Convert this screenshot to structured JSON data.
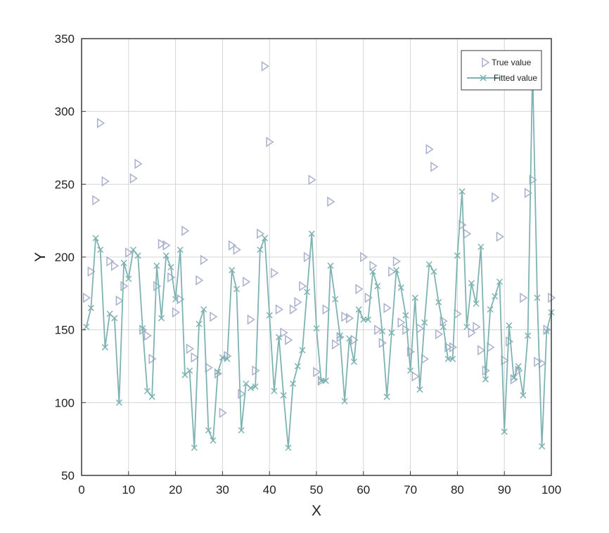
{
  "chart_data": {
    "type": "line",
    "xlabel": "X",
    "ylabel": "Y",
    "xlim": [
      0,
      100
    ],
    "ylim": [
      50,
      350
    ],
    "xticks": [
      0,
      10,
      20,
      30,
      40,
      50,
      60,
      70,
      80,
      90,
      100
    ],
    "yticks": [
      50,
      100,
      150,
      200,
      250,
      300,
      350
    ],
    "grid": true,
    "legend": "top-right",
    "colors": {
      "true_value": "#a9b0cc",
      "fitted_value": "#7fb3b3"
    },
    "series": [
      {
        "name": "True value",
        "style": "triangle-right-markers",
        "x": [
          1,
          2,
          3,
          4,
          5,
          6,
          7,
          8,
          9,
          10,
          11,
          12,
          13,
          14,
          15,
          16,
          17,
          18,
          19,
          20,
          21,
          22,
          23,
          24,
          25,
          26,
          27,
          28,
          29,
          30,
          31,
          32,
          33,
          34,
          35,
          36,
          37,
          38,
          39,
          40,
          41,
          42,
          43,
          44,
          45,
          46,
          47,
          48,
          49,
          50,
          51,
          52,
          53,
          54,
          55,
          56,
          57,
          58,
          59,
          60,
          61,
          62,
          63,
          64,
          65,
          66,
          67,
          68,
          69,
          70,
          71,
          72,
          73,
          74,
          75,
          76,
          77,
          78,
          79,
          80,
          81,
          82,
          83,
          84,
          85,
          86,
          87,
          88,
          89,
          90,
          91,
          92,
          93,
          94,
          95,
          96,
          97,
          98,
          99,
          100
        ],
        "values": [
          172,
          190,
          239,
          292,
          252,
          197,
          194,
          170,
          180,
          203,
          254,
          264,
          150,
          146,
          130,
          180,
          209,
          208,
          186,
          162,
          171,
          218,
          137,
          131,
          184,
          198,
          124,
          159,
          120,
          93,
          132,
          208,
          205,
          106,
          183,
          157,
          122,
          216,
          331,
          279,
          189,
          164,
          148,
          143,
          164,
          169,
          180,
          200,
          253,
          121,
          115,
          164,
          238,
          140,
          145,
          159,
          158,
          143,
          178,
          200,
          172,
          194,
          150,
          141,
          165,
          190,
          197,
          155,
          150,
          135,
          118,
          151,
          130,
          274,
          262,
          147,
          156,
          138,
          138,
          161,
          222,
          216,
          148,
          152,
          136,
          122,
          138,
          241,
          214,
          129,
          142,
          116,
          122,
          172,
          244,
          253,
          128,
          127,
          150,
          172
        ]
      },
      {
        "name": "Fitted value",
        "style": "line-with-x-markers",
        "x": [
          1,
          2,
          3,
          4,
          5,
          6,
          7,
          8,
          9,
          10,
          11,
          12,
          13,
          14,
          15,
          16,
          17,
          18,
          19,
          20,
          21,
          22,
          23,
          24,
          25,
          26,
          27,
          28,
          29,
          30,
          31,
          32,
          33,
          34,
          35,
          36,
          37,
          38,
          39,
          40,
          41,
          42,
          43,
          44,
          45,
          46,
          47,
          48,
          49,
          50,
          51,
          52,
          53,
          54,
          55,
          56,
          57,
          58,
          59,
          60,
          61,
          62,
          63,
          64,
          65,
          66,
          67,
          68,
          69,
          70,
          71,
          72,
          73,
          74,
          75,
          76,
          77,
          78,
          79,
          80,
          81,
          82,
          83,
          84,
          85,
          86,
          87,
          88,
          89,
          90,
          91,
          92,
          93,
          94,
          95,
          96,
          97,
          98,
          99,
          100
        ],
        "values": [
          152,
          165,
          213,
          205,
          138,
          161,
          158,
          100,
          196,
          185,
          205,
          201,
          151,
          108,
          104,
          194,
          158,
          201,
          193,
          171,
          205,
          119,
          122,
          69,
          154,
          164,
          81,
          74,
          121,
          131,
          130,
          191,
          178,
          81,
          113,
          110,
          111,
          205,
          213,
          160,
          108,
          145,
          105,
          69,
          113,
          125,
          136,
          176,
          216,
          151,
          115,
          115,
          194,
          171,
          146,
          101,
          144,
          128,
          164,
          157,
          157,
          190,
          180,
          149,
          104,
          148,
          191,
          179,
          160,
          122,
          172,
          109,
          155,
          195,
          190,
          169,
          152,
          130,
          130,
          201,
          245,
          152,
          182,
          168,
          207,
          116,
          164,
          173,
          183,
          80,
          153,
          117,
          125,
          105,
          146,
          330,
          172,
          70,
          149,
          162
        ]
      }
    ]
  }
}
